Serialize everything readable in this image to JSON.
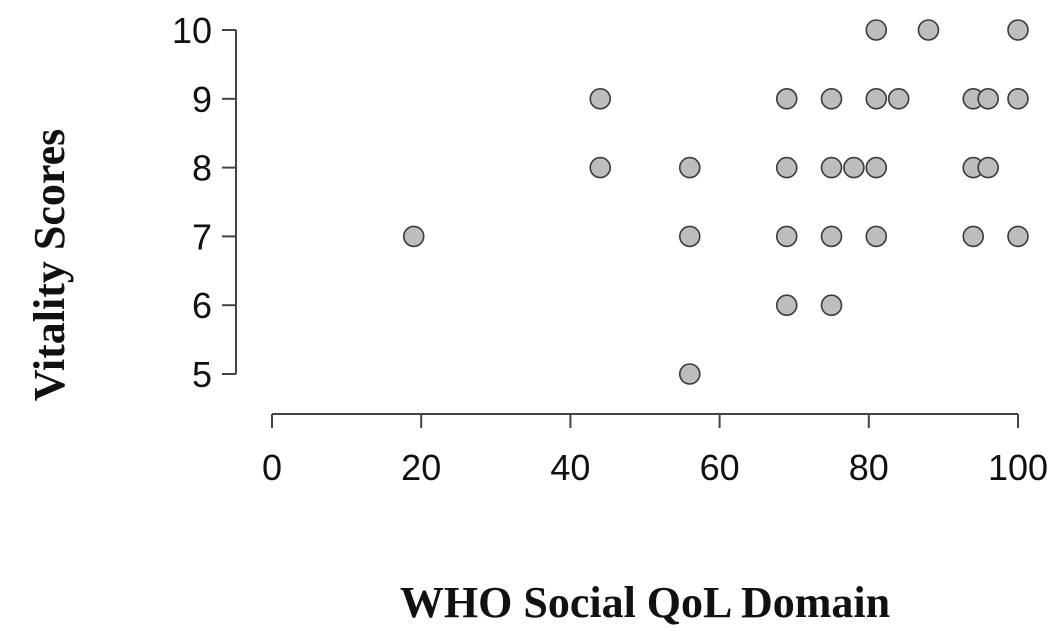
{
  "chart_data": {
    "type": "scatter",
    "xlabel": "WHO Social QoL Domain",
    "ylabel": "Vitality Scores",
    "xlim": [
      0,
      100
    ],
    "ylim": [
      5,
      10
    ],
    "x_ticks": [
      0,
      20,
      40,
      60,
      80,
      100
    ],
    "y_ticks": [
      5,
      6,
      7,
      8,
      9,
      10
    ],
    "grid": false,
    "legend": "none",
    "point_color": "#bdbdbd",
    "point_edge_color": "#3a3a3a",
    "points": [
      {
        "x": 19,
        "y": 7
      },
      {
        "x": 44,
        "y": 9
      },
      {
        "x": 44,
        "y": 8
      },
      {
        "x": 56,
        "y": 8
      },
      {
        "x": 56,
        "y": 7
      },
      {
        "x": 56,
        "y": 5
      },
      {
        "x": 69,
        "y": 9
      },
      {
        "x": 69,
        "y": 8
      },
      {
        "x": 69,
        "y": 7
      },
      {
        "x": 69,
        "y": 6
      },
      {
        "x": 75,
        "y": 9
      },
      {
        "x": 75,
        "y": 8
      },
      {
        "x": 75,
        "y": 7
      },
      {
        "x": 75,
        "y": 6
      },
      {
        "x": 78,
        "y": 8
      },
      {
        "x": 81,
        "y": 10
      },
      {
        "x": 81,
        "y": 9
      },
      {
        "x": 81,
        "y": 8
      },
      {
        "x": 81,
        "y": 7
      },
      {
        "x": 84,
        "y": 9
      },
      {
        "x": 88,
        "y": 10
      },
      {
        "x": 94,
        "y": 9
      },
      {
        "x": 94,
        "y": 8
      },
      {
        "x": 94,
        "y": 7
      },
      {
        "x": 96,
        "y": 9
      },
      {
        "x": 96,
        "y": 8
      },
      {
        "x": 100,
        "y": 10
      },
      {
        "x": 100,
        "y": 9
      },
      {
        "x": 100,
        "y": 7
      }
    ]
  }
}
